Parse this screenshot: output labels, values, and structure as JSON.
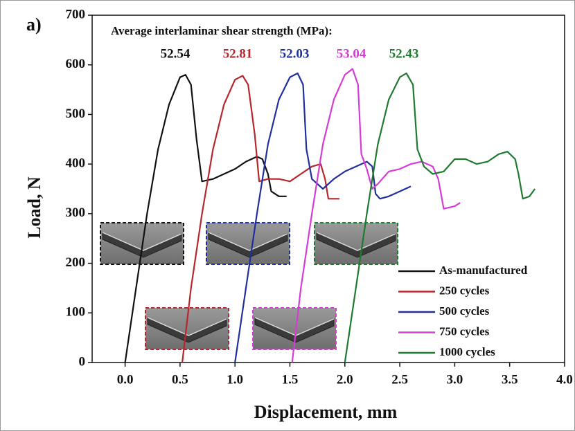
{
  "chart_data": {
    "type": "line",
    "panel_label": "a)",
    "heading": "Average interlaminar shear strength (MPa):",
    "strength_values": [
      52.54,
      52.81,
      52.03,
      53.04,
      52.43
    ],
    "xlabel": "Displacement, mm",
    "ylabel": "Load, N",
    "xlim": [
      -0.3,
      4.0
    ],
    "ylim": [
      0,
      700
    ],
    "xticks": [
      {
        "value": 0,
        "label": "0.0"
      },
      {
        "value": 0.5,
        "label": "0.5"
      },
      {
        "value": 1,
        "label": "1.0"
      },
      {
        "value": 1.5,
        "label": "1.5"
      },
      {
        "value": 2,
        "label": "2.0"
      },
      {
        "value": 2.5,
        "label": "2.5"
      },
      {
        "value": 3,
        "label": "3.0"
      },
      {
        "value": 3.5,
        "label": "3.5"
      },
      {
        "value": 4,
        "label": "4.0"
      }
    ],
    "yticks": [
      0,
      100,
      200,
      300,
      400,
      500,
      600,
      700
    ],
    "legend": "lower right",
    "series": [
      {
        "name": "As-manufactured",
        "color": "#111111",
        "x": [
          0.0,
          0.1,
          0.2,
          0.3,
          0.4,
          0.5,
          0.55,
          0.6,
          0.65,
          0.7,
          0.8,
          0.9,
          1.0,
          1.1,
          1.2,
          1.25,
          1.3,
          1.33,
          1.4,
          1.47
        ],
        "values": [
          0,
          150,
          300,
          430,
          520,
          575,
          580,
          560,
          450,
          365,
          370,
          380,
          390,
          405,
          415,
          410,
          380,
          345,
          335,
          335
        ]
      },
      {
        "name": "250 cycles",
        "color": "#b8262c",
        "x": [
          0.52,
          0.6,
          0.7,
          0.8,
          0.9,
          1.0,
          1.07,
          1.12,
          1.18,
          1.22,
          1.3,
          1.4,
          1.5,
          1.6,
          1.7,
          1.78,
          1.82,
          1.85,
          1.95
        ],
        "values": [
          0,
          150,
          300,
          430,
          520,
          570,
          578,
          560,
          460,
          365,
          370,
          370,
          365,
          380,
          395,
          400,
          370,
          330,
          330
        ]
      },
      {
        "name": "500 cycles",
        "color": "#1f2fa0",
        "x": [
          1.0,
          1.1,
          1.2,
          1.3,
          1.4,
          1.5,
          1.57,
          1.62,
          1.65,
          1.7,
          1.8,
          1.9,
          2.0,
          2.1,
          2.2,
          2.25,
          2.28,
          2.32,
          2.4,
          2.5,
          2.6
        ],
        "values": [
          0,
          150,
          300,
          440,
          530,
          575,
          583,
          560,
          430,
          370,
          350,
          370,
          385,
          395,
          405,
          395,
          340,
          330,
          335,
          345,
          355
        ]
      },
      {
        "name": "750 cycles",
        "color": "#d63bd6",
        "x": [
          1.52,
          1.6,
          1.7,
          1.8,
          1.9,
          2.0,
          2.07,
          2.12,
          2.15,
          2.2,
          2.25,
          2.3,
          2.4,
          2.5,
          2.6,
          2.7,
          2.8,
          2.85,
          2.9,
          3.0,
          3.05
        ],
        "values": [
          0,
          150,
          300,
          440,
          530,
          580,
          592,
          560,
          420,
          390,
          350,
          360,
          385,
          390,
          400,
          405,
          395,
          370,
          310,
          315,
          322
        ]
      },
      {
        "name": "1000 cycles",
        "color": "#1e7a2e",
        "x": [
          2.0,
          2.1,
          2.2,
          2.3,
          2.4,
          2.5,
          2.56,
          2.62,
          2.66,
          2.72,
          2.8,
          2.9,
          3.0,
          3.1,
          3.2,
          3.3,
          3.4,
          3.48,
          3.55,
          3.58,
          3.62,
          3.68,
          3.73
        ],
        "values": [
          0,
          150,
          300,
          440,
          530,
          575,
          583,
          560,
          430,
          395,
          380,
          385,
          410,
          410,
          400,
          405,
          420,
          425,
          410,
          380,
          330,
          335,
          350
        ]
      }
    ]
  }
}
